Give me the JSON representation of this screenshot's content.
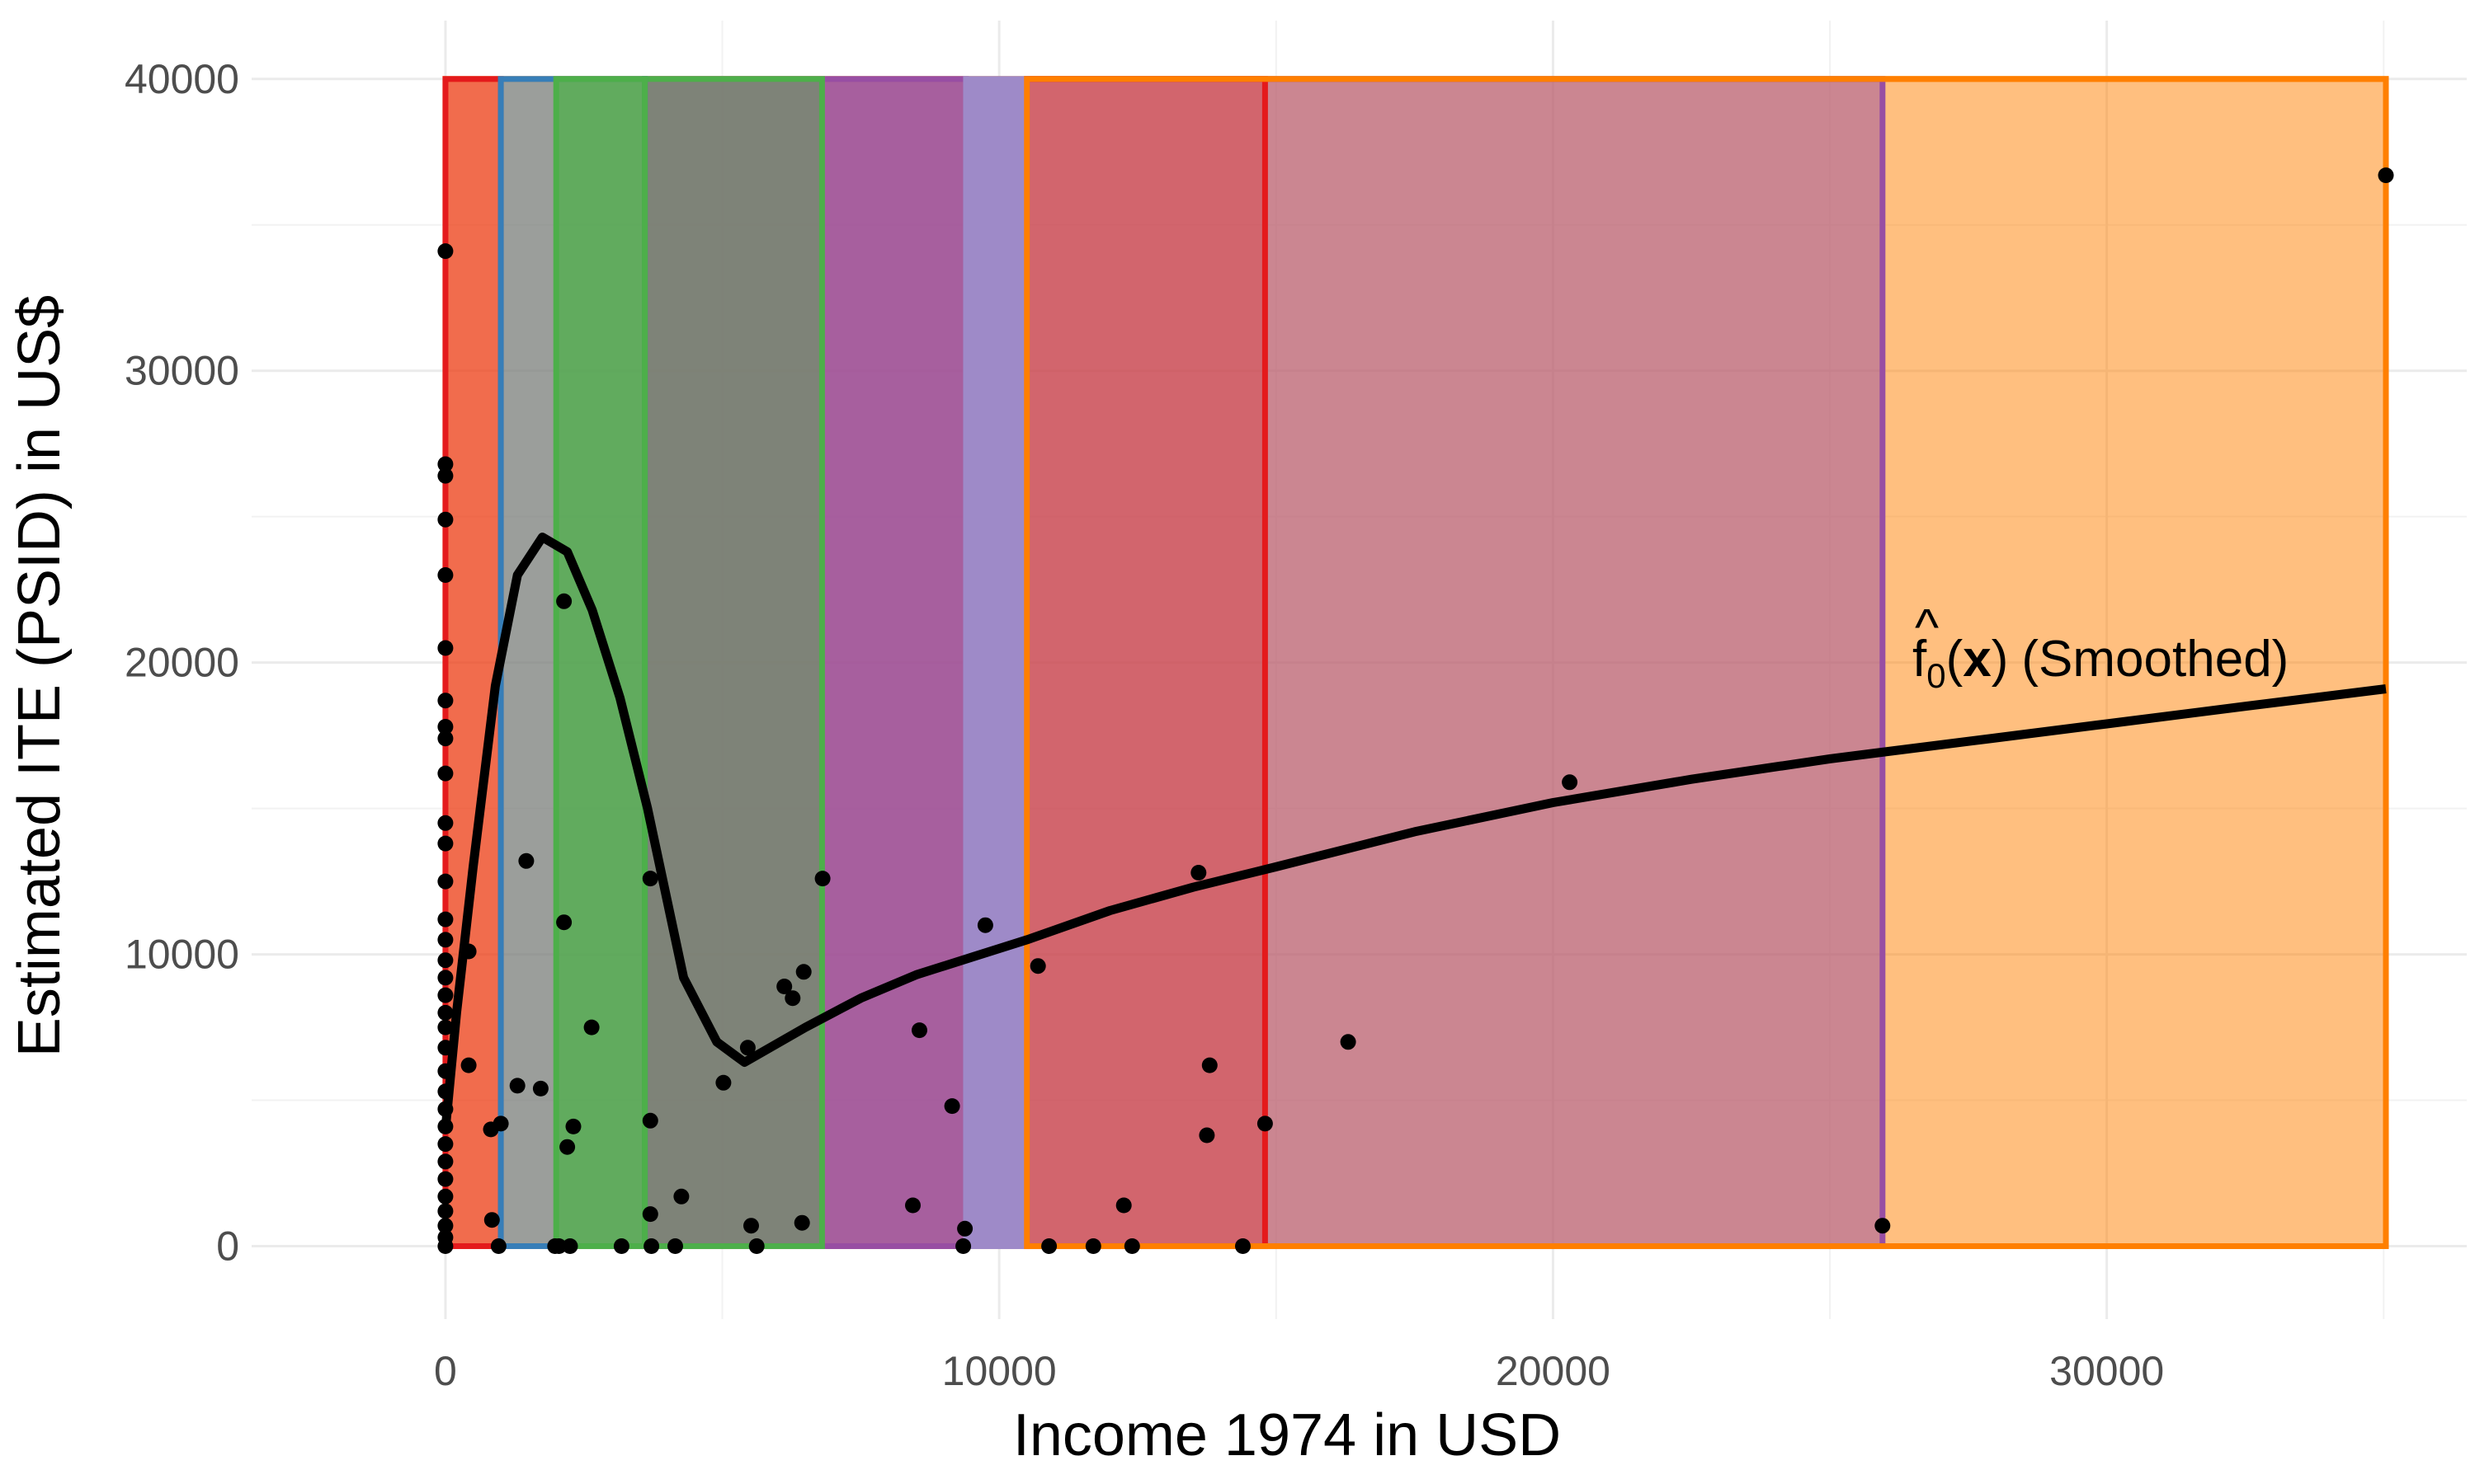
{
  "chart_data": {
    "type": "scatter",
    "title": "",
    "xlabel": "Income 1974 in USD",
    "ylabel": "Estimated ITE (PSID) in US$",
    "xlim": [
      -3500,
      36500
    ],
    "ylim": [
      -2500,
      42000
    ],
    "x_ticks": [
      0,
      10000,
      20000,
      30000
    ],
    "x_tick_labels": [
      "0",
      "10000",
      "20000",
      "30000"
    ],
    "y_ticks": [
      0,
      10000,
      20000,
      30000,
      40000
    ],
    "y_tick_labels": [
      "0",
      "10000",
      "20000",
      "30000",
      "40000"
    ],
    "grid": true,
    "legend": "none",
    "regions": [
      {
        "x0": 0,
        "x1": 35040,
        "y0": 0,
        "y1": 40000,
        "fill": "#FF7F00",
        "stroke": "#FF7F00",
        "opacity": 0.5
      },
      {
        "x0": 10500,
        "x1": 25950,
        "y0": 0,
        "y1": 40000,
        "fill": "#984EA3",
        "stroke": "#984EA3",
        "opacity": 0.5
      },
      {
        "x0": 10500,
        "x1": 14800,
        "y0": 0,
        "y1": 40000,
        "fill": "#E41A1C",
        "stroke": "#E41A1C",
        "opacity": 0.3
      },
      {
        "x0": 3600,
        "x1": 9400,
        "y0": 0,
        "y1": 40000,
        "fill": "#984EA3",
        "stroke": "#984EA3",
        "opacity": 0.85
      },
      {
        "x0": 3600,
        "x1": 6800,
        "y0": 0,
        "y1": 40000,
        "fill": "#4DAF4A",
        "stroke": "#4DAF4A",
        "opacity": 0.45
      },
      {
        "x0": 0,
        "x1": 1000,
        "y0": 0,
        "y1": 40000,
        "fill": "#E41A1C",
        "stroke": "#E41A1C",
        "opacity": 0.5
      },
      {
        "x0": 1000,
        "x1": 3600,
        "y0": 0,
        "y1": 40000,
        "fill": "#377EB8",
        "stroke": "#377EB8",
        "opacity": 0.5
      },
      {
        "x0": 2000,
        "x1": 3600,
        "y0": 0,
        "y1": 40000,
        "fill": "#4DAF4A",
        "stroke": "#4DAF4A",
        "opacity": 0.75
      },
      {
        "x0": 9400,
        "x1": 10500,
        "y0": 0,
        "y1": 40000,
        "fill": "#9E8AC8",
        "stroke": "#9E8AC8",
        "opacity": 1.0
      },
      {
        "x0": 10500,
        "x1": 35040,
        "y0": 0,
        "y1": 40000,
        "fill": "none",
        "stroke": "#FF7F00",
        "opacity": 1.0
      }
    ],
    "series": [
      {
        "kind": "points",
        "color": "#000000",
        "points": [
          [
            0,
            34100
          ],
          [
            0,
            26800
          ],
          [
            0,
            26400
          ],
          [
            0,
            24900
          ],
          [
            0,
            23000
          ],
          [
            0,
            20500
          ],
          [
            0,
            18700
          ],
          [
            0,
            17800
          ],
          [
            0,
            17400
          ],
          [
            0,
            16200
          ],
          [
            0,
            14500
          ],
          [
            0,
            13800
          ],
          [
            0,
            12500
          ],
          [
            0,
            11200
          ],
          [
            0,
            10500
          ],
          [
            0,
            9800
          ],
          [
            0,
            9200
          ],
          [
            0,
            8600
          ],
          [
            0,
            8000
          ],
          [
            0,
            7500
          ],
          [
            0,
            6800
          ],
          [
            0,
            6000
          ],
          [
            0,
            5300
          ],
          [
            0,
            4700
          ],
          [
            0,
            4100
          ],
          [
            0,
            3500
          ],
          [
            0,
            2900
          ],
          [
            0,
            2300
          ],
          [
            0,
            1700
          ],
          [
            0,
            1200
          ],
          [
            0,
            700
          ],
          [
            0,
            300
          ],
          [
            0,
            0
          ],
          [
            420,
            10100
          ],
          [
            420,
            6200
          ],
          [
            820,
            4000
          ],
          [
            840,
            900
          ],
          [
            960,
            0
          ],
          [
            1000,
            4200
          ],
          [
            1300,
            5500
          ],
          [
            1460,
            13200
          ],
          [
            1720,
            5400
          ],
          [
            1980,
            0
          ],
          [
            2050,
            0
          ],
          [
            2140,
            22100
          ],
          [
            2140,
            11100
          ],
          [
            2200,
            3400
          ],
          [
            2250,
            0
          ],
          [
            2310,
            4100
          ],
          [
            2640,
            7500
          ],
          [
            3180,
            0
          ],
          [
            3700,
            12600
          ],
          [
            3700,
            4300
          ],
          [
            3700,
            1100
          ],
          [
            3720,
            0
          ],
          [
            4150,
            0
          ],
          [
            4260,
            1700
          ],
          [
            5020,
            5600
          ],
          [
            5460,
            6800
          ],
          [
            5520,
            700
          ],
          [
            5620,
            0
          ],
          [
            6120,
            8900
          ],
          [
            6270,
            8500
          ],
          [
            6440,
            800
          ],
          [
            6470,
            9400
          ],
          [
            6810,
            12600
          ],
          [
            8440,
            1400
          ],
          [
            8560,
            7400
          ],
          [
            9150,
            4800
          ],
          [
            9350,
            0
          ],
          [
            9380,
            600
          ],
          [
            9750,
            11000
          ],
          [
            10700,
            9600
          ],
          [
            10900,
            0
          ],
          [
            11700,
            0
          ],
          [
            12250,
            1400
          ],
          [
            12400,
            0
          ],
          [
            13600,
            12800
          ],
          [
            13750,
            3800
          ],
          [
            13800,
            6200
          ],
          [
            14400,
            0
          ],
          [
            14800,
            4200
          ],
          [
            16300,
            7000
          ],
          [
            20300,
            15900
          ],
          [
            25950,
            700
          ],
          [
            35040,
            36700
          ]
        ]
      },
      {
        "kind": "line",
        "label": "(Smoothed)",
        "color": "#000000",
        "points": [
          [
            0,
            4000
          ],
          [
            200,
            8000
          ],
          [
            500,
            13000
          ],
          [
            900,
            19200
          ],
          [
            1300,
            23000
          ],
          [
            1750,
            24300
          ],
          [
            2200,
            23800
          ],
          [
            2650,
            21800
          ],
          [
            3150,
            18800
          ],
          [
            3650,
            15000
          ],
          [
            4300,
            9200
          ],
          [
            4900,
            7000
          ],
          [
            5400,
            6300
          ],
          [
            6500,
            7500
          ],
          [
            7500,
            8500
          ],
          [
            8500,
            9300
          ],
          [
            9500,
            9900
          ],
          [
            10500,
            10500
          ],
          [
            12000,
            11500
          ],
          [
            13500,
            12300
          ],
          [
            15000,
            13000
          ],
          [
            17500,
            14200
          ],
          [
            20000,
            15200
          ],
          [
            22500,
            16000
          ],
          [
            25000,
            16700
          ],
          [
            27500,
            17300
          ],
          [
            30000,
            17900
          ],
          [
            32500,
            18500
          ],
          [
            35040,
            19100
          ]
        ]
      }
    ],
    "annotations": [
      {
        "text": "(Smoothed)",
        "x": 35040,
        "y": 20500,
        "math": "f-hat sub 0 (x)"
      }
    ],
    "annotation_parts": {
      "f": "f",
      "hat": "^",
      "sub": "0",
      "open": "(",
      "x": "x",
      "close": ")",
      "smoothed": "(Smoothed)"
    }
  }
}
